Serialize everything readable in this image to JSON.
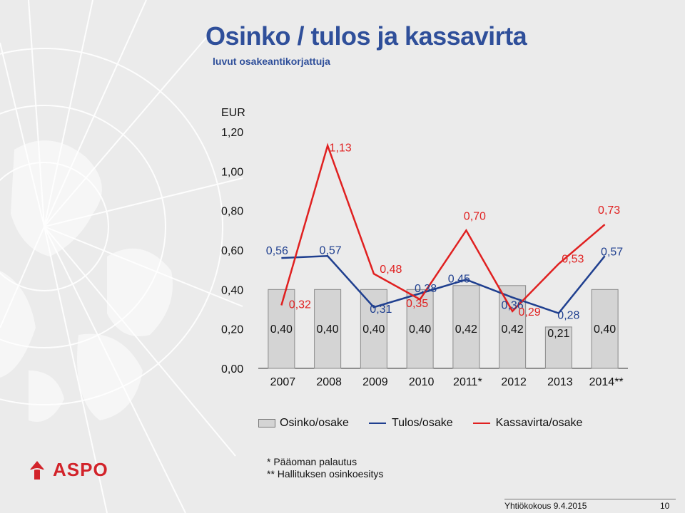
{
  "header": {
    "title": "Osinko / tulos ja kassavirta",
    "subtitle": "luvut osakeantikorjattuja"
  },
  "chart_data": {
    "type": "bar",
    "y_unit": "EUR",
    "categories": [
      "2007",
      "2008",
      "2009",
      "2010",
      "2011*",
      "2012",
      "2013",
      "2014**"
    ],
    "ylim": [
      0,
      1.2
    ],
    "yticks": [
      "0,00",
      "0,20",
      "0,40",
      "0,60",
      "0,80",
      "1,00",
      "1,20"
    ],
    "grid": false,
    "legend_position": "bottom",
    "series": [
      {
        "name": "Osinko/osake",
        "kind": "bar",
        "color": "#d4d4d4",
        "values": [
          0.4,
          0.4,
          0.4,
          0.4,
          0.42,
          0.42,
          0.21,
          0.4
        ],
        "labels": [
          "0,40",
          "0,40",
          "0,40",
          "0,40",
          "0,42",
          "0,42",
          "0,21",
          "0,40"
        ]
      },
      {
        "name": "Tulos/osake",
        "kind": "line",
        "color": "#1f3f8f",
        "values": [
          0.56,
          0.57,
          0.31,
          0.38,
          0.45,
          0.36,
          0.28,
          0.57
        ],
        "labels": [
          "0,56",
          "0,57",
          "0,31",
          "0,38",
          "0,45",
          "0,36",
          "0,28",
          "0,57"
        ]
      },
      {
        "name": "Kassavirta/osake",
        "kind": "line",
        "color": "#e02020",
        "values": [
          0.32,
          1.13,
          0.48,
          0.35,
          0.7,
          0.29,
          0.53,
          0.73
        ],
        "labels": [
          "0,32",
          "1,13",
          "0,48",
          "0,35",
          "0,70",
          "0,29",
          "0,53",
          "0,73"
        ]
      }
    ]
  },
  "footnotes": {
    "line1": "*  Pääoman palautus",
    "line2": "** Hallituksen osinkoesitys"
  },
  "logo": {
    "text": "ASPO",
    "color": "#d2232a"
  },
  "footer": {
    "text": "Yhtiökokous 9.4.2015",
    "page": "10"
  }
}
